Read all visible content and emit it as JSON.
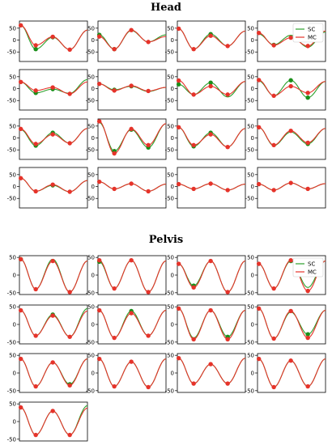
{
  "sections": {
    "head": {
      "title": "Head"
    },
    "pelvis": {
      "title": "Pelvis"
    }
  },
  "legend": {
    "sc": "SC",
    "mc": "MC"
  },
  "colors": {
    "sc": "#2ca02c",
    "mc": "#e6332a",
    "point": "#e6332a",
    "point_sc": "#1a8f1a"
  },
  "chart_data": [
    {
      "name": "Head",
      "type": "line",
      "ylim": [
        -90,
        80
      ],
      "yticks": [
        50,
        0,
        -50
      ],
      "legend_panel": 3,
      "legend_position": "top-right",
      "series": [
        "SC",
        "MC"
      ],
      "panels": [
        {
          "sc": [
            62,
            -38,
            12,
            -40,
            42
          ],
          "mc": [
            62,
            -22,
            14,
            -40,
            42
          ],
          "mcPoints": [
            62,
            -22,
            14,
            -40
          ],
          "scPoints": [
            -38,
            12
          ]
        },
        {
          "sc": [
            22,
            -38,
            40,
            -8,
            22
          ],
          "mc": [
            15,
            -38,
            42,
            -8,
            15
          ],
          "mcPoints": [
            15,
            -38,
            42,
            -8
          ],
          "scPoints": [
            22,
            -38
          ]
        },
        {
          "sc": [
            48,
            -38,
            25,
            -25,
            38
          ],
          "mc": [
            48,
            -38,
            18,
            -25,
            38
          ],
          "mcPoints": [
            48,
            -38,
            18,
            -25
          ],
          "scPoints": [
            25
          ]
        },
        {
          "sc": [
            25,
            -20,
            20,
            -30,
            34
          ],
          "mc": [
            30,
            -22,
            10,
            -25,
            38
          ],
          "mcPoints": [
            30,
            -22,
            10,
            -25
          ],
          "scPoints": [
            -20
          ]
        },
        {
          "sc": [
            28,
            -18,
            -2,
            -20,
            38
          ],
          "mc": [
            28,
            -8,
            5,
            -22,
            28
          ],
          "mcPoints": [
            28,
            -8,
            5,
            -22
          ],
          "scPoints": [
            -18,
            -2
          ]
        },
        {
          "sc": [
            20,
            -5,
            10,
            -12,
            5
          ],
          "mc": [
            20,
            -8,
            12,
            -10,
            5
          ],
          "mcPoints": [
            20,
            -8,
            12,
            -10
          ],
          "scPoints": [
            -5,
            10
          ]
        },
        {
          "sc": [
            18,
            -25,
            25,
            -35,
            30
          ],
          "mc": [
            34,
            -25,
            10,
            -25,
            30
          ],
          "mcPoints": [
            34,
            -25,
            10,
            -25
          ],
          "scPoints": [
            18,
            25
          ]
        },
        {
          "sc": [
            32,
            -30,
            35,
            -38,
            30
          ],
          "mc": [
            36,
            -30,
            10,
            -18,
            30
          ],
          "mcPoints": [
            36,
            -30,
            10,
            -18
          ],
          "scPoints": [
            35,
            -38
          ]
        },
        {
          "sc": [
            35,
            -32,
            22,
            -22,
            40
          ],
          "mc": [
            38,
            -25,
            15,
            -22,
            40
          ],
          "mcPoints": [
            38,
            -25,
            15,
            -22
          ],
          "scPoints": [
            -32,
            22
          ]
        },
        {
          "sc": [
            65,
            -55,
            35,
            -40,
            60
          ],
          "mc": [
            70,
            -65,
            38,
            -30,
            60
          ],
          "mcPoints": [
            70,
            -65,
            38,
            -30
          ],
          "scPoints": [
            -55,
            35,
            -40
          ]
        },
        {
          "sc": [
            45,
            -35,
            22,
            -38,
            40
          ],
          "mc": [
            45,
            -30,
            15,
            -38,
            40
          ],
          "mcPoints": [
            45,
            -30,
            15,
            -38
          ],
          "scPoints": [
            -35,
            22
          ]
        },
        {
          "sc": [
            45,
            -32,
            25,
            -25,
            40
          ],
          "mc": [
            45,
            -30,
            30,
            -20,
            40
          ],
          "mcPoints": [
            45,
            -30,
            30,
            -20
          ],
          "scPoints": [
            -25
          ]
        },
        {
          "sc": [
            35,
            -20,
            5,
            -22,
            25
          ],
          "mc": [
            35,
            -20,
            8,
            -22,
            25
          ],
          "mcPoints": [
            35,
            -20,
            8,
            -22
          ],
          "scPoints": [
            5
          ]
        },
        {
          "sc": [
            20,
            -10,
            12,
            -20,
            10
          ],
          "mc": [
            20,
            -10,
            12,
            -20,
            10
          ],
          "mcPoints": [
            20,
            -10,
            12,
            -20
          ],
          "scPoints": []
        },
        {
          "sc": [
            10,
            -10,
            12,
            -15,
            10
          ],
          "mc": [
            10,
            -10,
            12,
            -15,
            10
          ],
          "mcPoints": [
            10,
            -10,
            12,
            -15
          ],
          "scPoints": []
        },
        {
          "sc": [
            10,
            -15,
            15,
            -10,
            12
          ],
          "mc": [
            10,
            -15,
            15,
            -10,
            12
          ],
          "mcPoints": [
            10,
            -15,
            15,
            -10
          ],
          "scPoints": []
        }
      ]
    },
    {
      "name": "Pelvis",
      "type": "line",
      "ylim": [
        -55,
        55
      ],
      "yticks": [
        50,
        0,
        -50
      ],
      "legend_panel": 3,
      "legend_position": "top-right",
      "series": [
        "SC",
        "MC"
      ],
      "panels": [
        {
          "sc": [
            45,
            -40,
            45,
            -48,
            40
          ],
          "mc": [
            45,
            -40,
            40,
            -48,
            40
          ],
          "mcPoints": [
            45,
            -40,
            40,
            -48
          ],
          "scPoints": [
            45
          ]
        },
        {
          "sc": [
            38,
            -38,
            42,
            -48,
            40
          ],
          "mc": [
            42,
            -38,
            42,
            -48,
            40
          ],
          "mcPoints": [
            42,
            -38,
            42,
            -48
          ],
          "scPoints": [
            38
          ]
        },
        {
          "sc": [
            32,
            -30,
            40,
            -48,
            40
          ],
          "mc": [
            32,
            -35,
            40,
            -48,
            40
          ],
          "mcPoints": [
            32,
            -35,
            40,
            -48
          ],
          "scPoints": [
            -30
          ]
        },
        {
          "sc": [
            32,
            -38,
            40,
            -35,
            40
          ],
          "mc": [
            32,
            -38,
            42,
            -45,
            40
          ],
          "mcPoints": [
            32,
            -38,
            42,
            -45
          ],
          "scPoints": [
            40
          ]
        },
        {
          "sc": [
            40,
            -32,
            28,
            -35,
            45
          ],
          "mc": [
            40,
            -32,
            25,
            -35,
            38
          ],
          "mcPoints": [
            40,
            -32,
            25,
            -35
          ],
          "scPoints": [
            28
          ]
        },
        {
          "sc": [
            40,
            -38,
            38,
            -32,
            40
          ],
          "mc": [
            40,
            -38,
            32,
            -32,
            40
          ],
          "mcPoints": [
            40,
            -38,
            32,
            -32
          ],
          "scPoints": [
            38
          ]
        },
        {
          "sc": [
            45,
            -38,
            40,
            -35,
            40
          ],
          "mc": [
            45,
            -42,
            40,
            -42,
            40
          ],
          "mcPoints": [
            45,
            -42,
            40,
            -42
          ],
          "scPoints": [
            -35
          ]
        },
        {
          "sc": [
            45,
            -40,
            35,
            -28,
            40
          ],
          "mc": [
            45,
            -40,
            38,
            -38,
            40
          ],
          "mcPoints": [
            45,
            -40,
            38,
            -38
          ],
          "scPoints": [
            -28
          ]
        },
        {
          "sc": [
            40,
            -38,
            30,
            -32,
            40
          ],
          "mc": [
            40,
            -38,
            30,
            -35,
            40
          ],
          "mcPoints": [
            40,
            -38,
            30,
            -35
          ],
          "scPoints": [
            -32
          ]
        },
        {
          "sc": [
            40,
            -38,
            32,
            -40,
            40
          ],
          "mc": [
            40,
            -38,
            32,
            -40,
            40
          ],
          "mcPoints": [
            40,
            -38,
            32,
            -40
          ],
          "scPoints": []
        },
        {
          "sc": [
            42,
            -30,
            25,
            -30,
            42
          ],
          "mc": [
            42,
            -30,
            25,
            -30,
            42
          ],
          "mcPoints": [
            42,
            -30,
            25,
            -30
          ],
          "scPoints": []
        },
        {
          "sc": [
            40,
            -40,
            35,
            -38,
            40
          ],
          "mc": [
            40,
            -40,
            35,
            -38,
            40
          ],
          "mcPoints": [
            40,
            -40,
            35,
            -38
          ],
          "scPoints": []
        },
        {
          "sc": [
            40,
            -38,
            30,
            -38,
            45
          ],
          "mc": [
            40,
            -38,
            30,
            -38,
            38
          ],
          "mcPoints": [
            40,
            -38,
            30,
            -38
          ],
          "scPoints": []
        }
      ]
    }
  ]
}
